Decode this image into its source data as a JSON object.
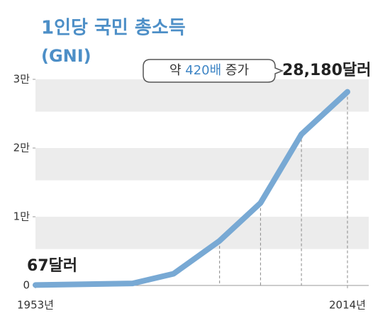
{
  "chart_data": {
    "type": "line",
    "title": "1인당 국민 총소득",
    "subtitle": "(GNI)",
    "x": [
      1953,
      1972,
      1980,
      1989,
      1997,
      2005,
      2014
    ],
    "series": [
      {
        "name": "1인당 국민 총소득",
        "color": "#78a9d4",
        "values": [
          67,
          300,
          1700,
          6500,
          12000,
          22000,
          28180
        ]
      }
    ],
    "xlim": [
      1953,
      2014
    ],
    "xticks": [
      {
        "value": 1953,
        "label": "1953년"
      },
      {
        "value": 2014,
        "label": "2014년"
      }
    ],
    "ylim": [
      0,
      30000
    ],
    "yticks": [
      0,
      {
        "value": 10000,
        "label": "1만"
      },
      {
        "value": 20000,
        "label": "2만"
      },
      {
        "value": 30000,
        "label": "3만"
      }
    ],
    "start_label": "67달러",
    "end_label": "28,180달러",
    "annotation": {
      "prefix": "약",
      "highlight": "420배",
      "suffix": "증가"
    }
  }
}
